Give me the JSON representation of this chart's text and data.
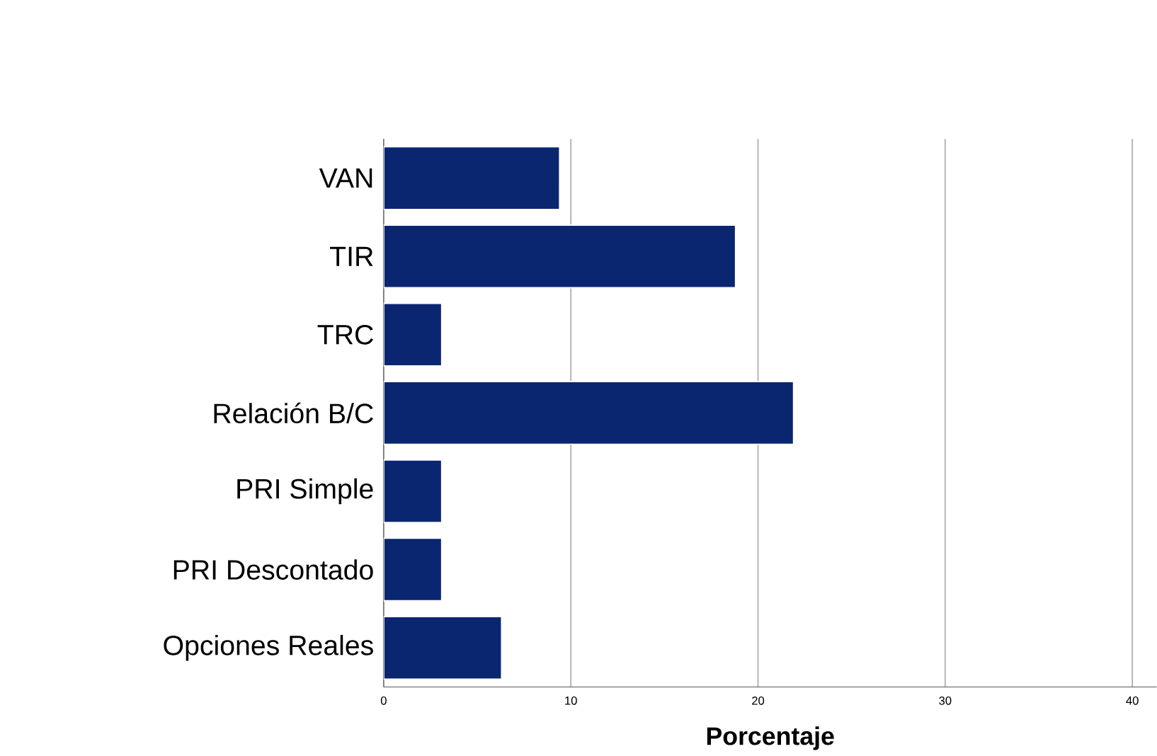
{
  "chart_data": {
    "type": "bar",
    "orientation": "horizontal",
    "xlabel": "Porcentaje",
    "categories": [
      "VAN",
      "TIR",
      "TRC",
      "Relación B/C",
      "PRI Simple",
      "PRI Descontado",
      "Opciones Reales"
    ],
    "values": [
      9.4,
      18.8,
      3.1,
      21.9,
      3.1,
      3.1,
      6.3
    ],
    "color": "#0b2670",
    "xlim": [
      0,
      41.3
    ],
    "xticks": [
      0,
      10,
      20,
      30,
      40
    ],
    "grid": "x"
  }
}
